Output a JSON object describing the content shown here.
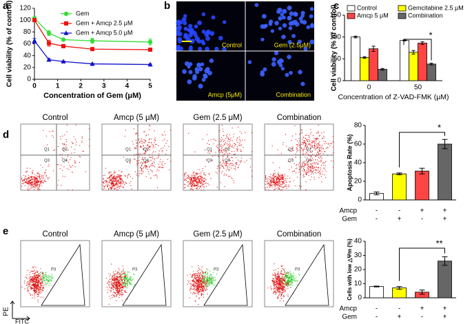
{
  "panel_labels": [
    "a",
    "b",
    "c",
    "d",
    "e"
  ],
  "micrographs": {
    "labels": [
      "Control",
      "Gem (2.5μM)",
      "Amcp (5μM)",
      "Combination"
    ]
  },
  "flow_d": {
    "titles": [
      "Control",
      "Amcp (5 μM)",
      "Gem (2.5 μM)",
      "Combination"
    ],
    "quadrants": [
      "Q1",
      "Q2",
      "Q3",
      "Q4"
    ]
  },
  "flow_e": {
    "titles": [
      "Control",
      "Amcp (5 μM)",
      "Gem (2.5 μM)",
      "Combination"
    ],
    "gate": "P3",
    "y_axis": "PE",
    "x_axis": "FITC"
  },
  "chart_data": [
    {
      "type": "line",
      "xlabel": "Concentration of Gem (μM)",
      "ylabel": "Cell viability (% of control)",
      "x": [
        0,
        0.625,
        1.25,
        2.5,
        5
      ],
      "xlim": [
        0,
        5
      ],
      "xticks": [
        0,
        1,
        2,
        3,
        4,
        5
      ],
      "ylim": [
        0,
        120
      ],
      "yticks": [
        0,
        20,
        40,
        60,
        80,
        100,
        120
      ],
      "legend": "upper right",
      "series": [
        {
          "name": "Gem",
          "color": "#33dd33",
          "marker": "circle",
          "values": [
            103,
            78,
            67,
            65,
            63
          ],
          "errors": [
            3,
            4,
            2,
            4,
            5
          ]
        },
        {
          "name": "Gem + Amcp 2.5 μM",
          "color": "#ee1111",
          "marker": "square",
          "values": [
            100,
            61,
            56,
            51,
            50
          ],
          "errors": [
            2,
            5,
            3,
            2,
            1
          ]
        },
        {
          "name": "Gem + Amcp 5.0 μM",
          "color": "#1111cc",
          "marker": "triangle",
          "values": [
            65,
            33,
            30,
            26,
            25
          ],
          "errors": [
            4,
            2,
            1,
            1,
            1
          ]
        }
      ]
    },
    {
      "type": "grouped-bar",
      "xlabel": "Concentration of Z-VAD-FMK (μM)",
      "ylabel": "Cell viability (% of control)",
      "categories": [
        "0",
        "50"
      ],
      "ylim": [
        0,
        150
      ],
      "yticks": [
        0,
        50,
        100,
        150
      ],
      "significance": "*",
      "series": [
        {
          "name": "Control",
          "color": "#ffffff",
          "values": [
            100,
            92
          ],
          "errors": [
            2,
            1
          ]
        },
        {
          "name": "Gemcitabine 2.5 μM",
          "color": "#ffff00",
          "values": [
            53,
            65
          ],
          "errors": [
            2,
            4
          ]
        },
        {
          "name": "Amcp 5 μM",
          "color": "#ff4444",
          "values": [
            73,
            86
          ],
          "errors": [
            6,
            3
          ]
        },
        {
          "name": "Combination",
          "color": "#666666",
          "values": [
            26,
            38
          ],
          "errors": [
            2,
            2
          ]
        }
      ]
    },
    {
      "type": "bar",
      "ylabel": "Apoptosis Rate (%)",
      "values": [
        7,
        28,
        31,
        60
      ],
      "errors": [
        1.5,
        1,
        3,
        5
      ],
      "colors": [
        "#ffffff",
        "#ffff00",
        "#ff4444",
        "#666666"
      ],
      "ylim": [
        0,
        80
      ],
      "yticks": [
        0,
        20,
        40,
        60,
        80
      ],
      "significance": "*",
      "treatments": [
        {
          "name": "Amcp",
          "signs": [
            "-",
            "-",
            "+",
            "+"
          ]
        },
        {
          "name": "Gem",
          "signs": [
            "-",
            "+",
            "-",
            "+"
          ]
        }
      ]
    },
    {
      "type": "bar",
      "ylabel": "Cells with low △Ψm (%)",
      "values": [
        8,
        7,
        4,
        26
      ],
      "errors": [
        0.3,
        1,
        1.5,
        3
      ],
      "colors": [
        "#ffffff",
        "#ffff00",
        "#ff4444",
        "#666666"
      ],
      "ylim": [
        0,
        40
      ],
      "yticks": [
        0,
        10,
        20,
        30,
        40
      ],
      "significance": "**",
      "treatments": [
        {
          "name": "Amcp",
          "signs": [
            "-",
            "-",
            "+",
            "+"
          ]
        },
        {
          "name": "Gem",
          "signs": [
            "-",
            "+",
            "-",
            "+"
          ]
        }
      ]
    }
  ]
}
